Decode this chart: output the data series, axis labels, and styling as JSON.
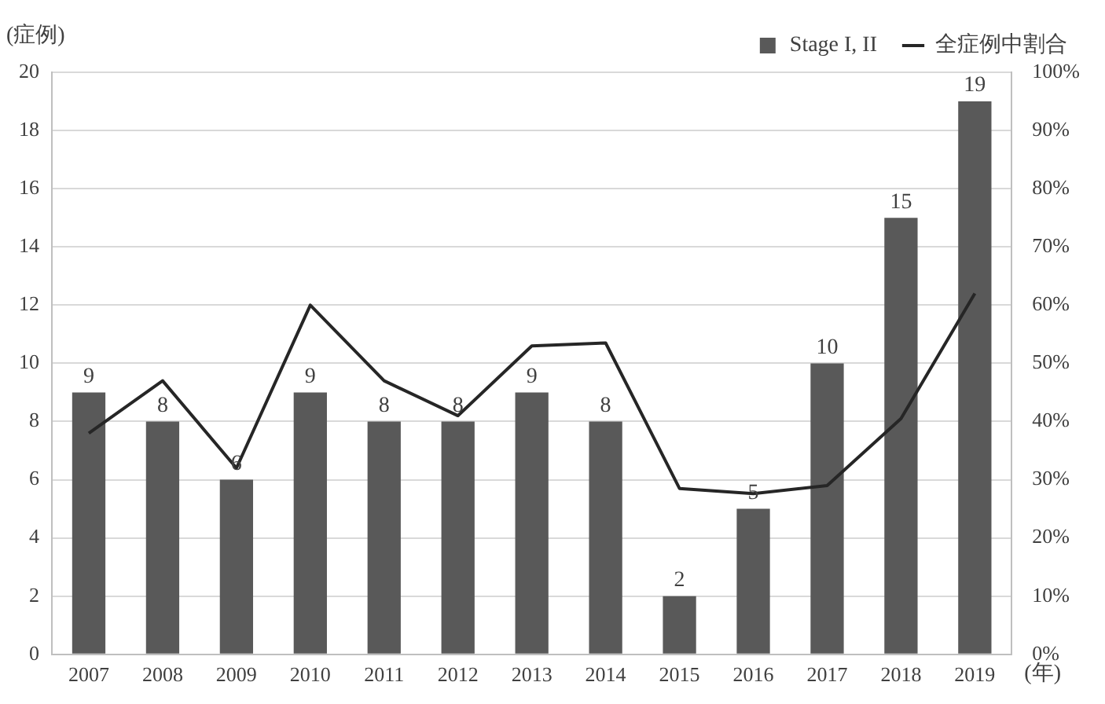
{
  "chart_data": {
    "type": "bar",
    "ylabel": "(症例)",
    "xlabel": "(年)",
    "categories": [
      "2007",
      "2008",
      "2009",
      "2010",
      "2011",
      "2012",
      "2013",
      "2014",
      "2015",
      "2016",
      "2017",
      "2018",
      "2019"
    ],
    "series": [
      {
        "name": "Stage I, II",
        "color": "#595959",
        "values": [
          9,
          8,
          6,
          9,
          8,
          8,
          9,
          8,
          2,
          5,
          10,
          15,
          19
        ],
        "value_labels": [
          "9",
          "8",
          "6",
          "9",
          "8",
          "8",
          "9",
          "8",
          "2",
          "5",
          "10",
          "15",
          "19"
        ]
      },
      {
        "name": "全症例中割合",
        "type": "line",
        "axis": "y2",
        "color": "#262626",
        "values": [
          38,
          47,
          32,
          60,
          47,
          41,
          53,
          53.5,
          28.5,
          27.6,
          29,
          40.5,
          62
        ]
      }
    ],
    "ylim": [
      0,
      20
    ],
    "yticks": [
      0,
      2,
      4,
      6,
      8,
      10,
      12,
      14,
      16,
      18,
      20
    ],
    "y2lim": [
      0,
      100
    ],
    "y2ticks": [
      {
        "value": 0,
        "label": "0%"
      },
      {
        "value": 10,
        "label": "10%"
      },
      {
        "value": 20,
        "label": "20%"
      },
      {
        "value": 30,
        "label": "30%"
      },
      {
        "value": 40,
        "label": "40%"
      },
      {
        "value": 50,
        "label": "50%"
      },
      {
        "value": 60,
        "label": "60%"
      },
      {
        "value": 70,
        "label": "70%"
      },
      {
        "value": 80,
        "label": "80%"
      },
      {
        "value": 90,
        "label": "90%"
      },
      {
        "value": 100,
        "label": "100%"
      }
    ],
    "grid": "y",
    "legend": "top right",
    "marker": "none",
    "line_style": "solid"
  }
}
